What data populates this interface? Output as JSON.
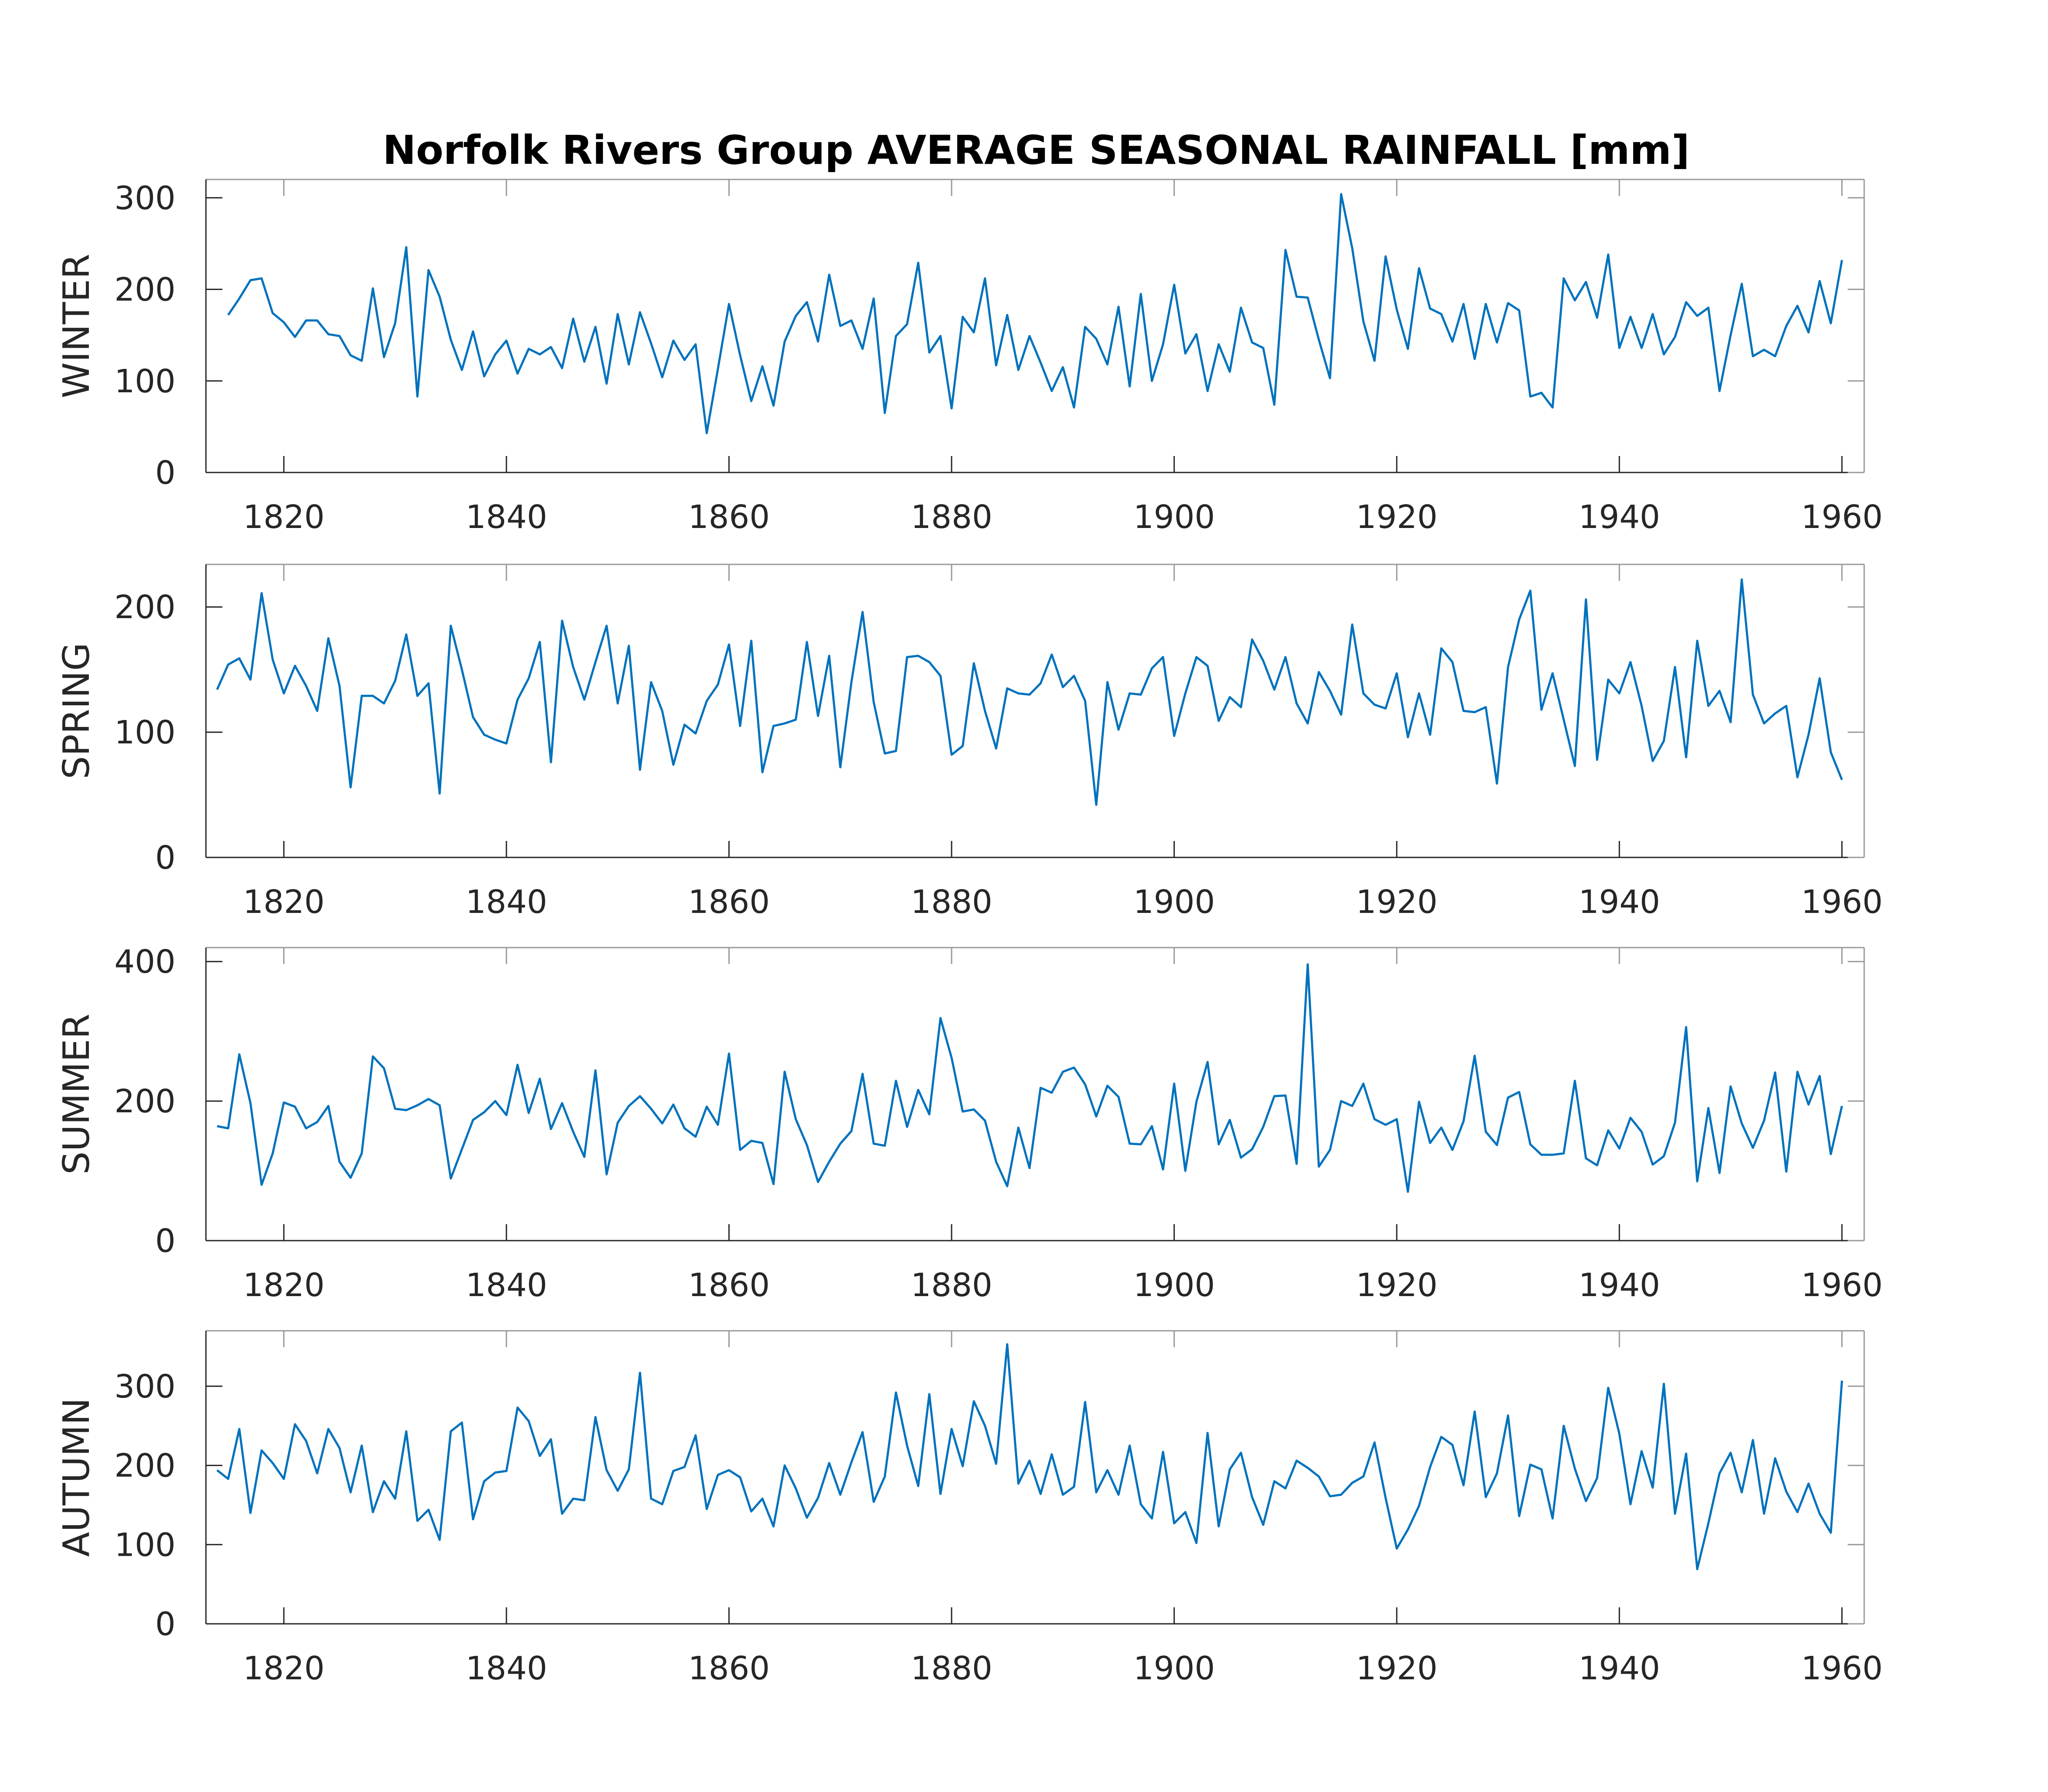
{
  "title": "Norfolk Rivers Group AVERAGE SEASONAL RAINFALL [mm]",
  "line_color": "#0072BD",
  "chart_data": [
    {
      "type": "line",
      "ylabel": "WINTER",
      "xlim": [
        1813,
        1962
      ],
      "ylim": [
        0,
        320
      ],
      "xticks": [
        1820,
        1840,
        1860,
        1880,
        1900,
        1920,
        1940,
        1960
      ],
      "yticks": [
        0,
        100,
        200,
        300
      ],
      "x_start": 1815,
      "values": [
        172,
        190,
        210,
        212,
        174,
        164,
        148,
        166,
        166,
        151,
        149,
        128,
        122,
        201,
        126,
        163,
        246,
        83,
        221,
        192,
        145,
        112,
        154,
        105,
        129,
        144,
        108,
        135,
        129,
        137,
        114,
        168,
        121,
        159,
        97,
        173,
        118,
        175,
        141,
        104,
        144,
        123,
        140,
        43,
        113,
        184,
        128,
        78,
        116,
        73,
        143,
        171,
        186,
        143,
        216,
        160,
        166,
        135,
        190,
        65,
        149,
        162,
        229,
        131,
        149,
        70,
        170,
        153,
        212,
        117,
        172,
        112,
        149,
        120,
        89,
        115,
        71,
        159,
        146,
        118,
        181,
        94,
        195,
        100,
        140,
        205,
        130,
        151,
        89,
        140,
        110,
        180,
        142,
        136,
        74,
        243,
        192,
        191,
        145,
        103,
        304,
        245,
        165,
        122,
        236,
        178,
        135,
        223,
        179,
        173,
        143,
        184,
        124,
        184,
        142,
        185,
        177,
        83,
        87,
        71,
        212,
        188,
        208,
        169,
        238,
        136,
        170,
        136,
        173,
        129,
        148,
        186,
        171,
        180,
        89,
        150,
        206,
        127,
        134,
        127,
        160,
        182,
        153,
        209,
        163,
        232
      ]
    },
    {
      "type": "line",
      "ylabel": "SPRING",
      "xlim": [
        1813,
        1962
      ],
      "ylim": [
        0,
        234
      ],
      "xticks": [
        1820,
        1840,
        1860,
        1880,
        1900,
        1920,
        1940,
        1960
      ],
      "yticks": [
        0,
        100,
        200
      ],
      "x_start": 1814,
      "values": [
        134,
        154,
        159,
        142,
        211,
        158,
        131,
        153,
        137,
        117,
        175,
        137,
        56,
        129,
        129,
        123,
        141,
        178,
        129,
        139,
        51,
        185,
        150,
        112,
        98,
        94,
        91,
        126,
        143,
        172,
        76,
        189,
        152,
        126,
        156,
        185,
        123,
        169,
        70,
        140,
        117,
        74,
        106,
        99,
        125,
        138,
        170,
        105,
        173,
        68,
        105,
        107,
        110,
        172,
        113,
        161,
        72,
        140,
        196,
        124,
        83,
        85,
        160,
        161,
        156,
        145,
        82,
        89,
        155,
        117,
        87,
        135,
        131,
        130,
        139,
        162,
        136,
        145,
        125,
        42,
        140,
        102,
        131,
        130,
        151,
        160,
        97,
        131,
        160,
        153,
        109,
        128,
        120,
        174,
        157,
        134,
        160,
        123,
        107,
        148,
        133,
        114,
        186,
        131,
        122,
        119,
        147,
        96,
        131,
        98,
        167,
        156,
        117,
        116,
        120,
        59,
        152,
        190,
        213,
        118,
        147,
        110,
        73,
        206,
        78,
        142,
        131,
        156,
        121,
        77,
        93,
        152,
        80,
        173,
        121,
        133,
        108,
        222,
        130,
        107,
        115,
        121,
        64,
        98,
        143,
        84,
        62
      ]
    },
    {
      "type": "line",
      "ylabel": "SUMMER",
      "xlim": [
        1813,
        1962
      ],
      "ylim": [
        0,
        420
      ],
      "xticks": [
        1820,
        1840,
        1860,
        1880,
        1900,
        1920,
        1940,
        1960
      ],
      "yticks": [
        0,
        200,
        400
      ],
      "x_start": 1814,
      "values": [
        164,
        161,
        267,
        197,
        80,
        125,
        198,
        192,
        161,
        170,
        193,
        113,
        90,
        125,
        264,
        247,
        189,
        187,
        194,
        203,
        194,
        89,
        131,
        173,
        184,
        200,
        180,
        252,
        183,
        232,
        160,
        197,
        156,
        120,
        244,
        95,
        169,
        193,
        207,
        189,
        168,
        195,
        161,
        149,
        192,
        166,
        268,
        130,
        143,
        140,
        81,
        242,
        174,
        137,
        84,
        113,
        139,
        157,
        239,
        139,
        136,
        229,
        163,
        216,
        181,
        319,
        262,
        185,
        188,
        172,
        113,
        78,
        162,
        104,
        219,
        212,
        242,
        248,
        224,
        178,
        222,
        206,
        139,
        138,
        164,
        102,
        225,
        100,
        199,
        256,
        138,
        173,
        119,
        131,
        163,
        207,
        208,
        110,
        396,
        106,
        130,
        200,
        193,
        225,
        174,
        166,
        174,
        70,
        199,
        140,
        162,
        130,
        171,
        265,
        156,
        137,
        205,
        213,
        138,
        123,
        123,
        125,
        229,
        118,
        108,
        158,
        132,
        176,
        156,
        109,
        121,
        169,
        306,
        85,
        190,
        97,
        221,
        168,
        133,
        172,
        241,
        99,
        242,
        195,
        236,
        124,
        193
      ]
    },
    {
      "type": "line",
      "ylabel": "AUTUMN",
      "xlim": [
        1813,
        1962
      ],
      "ylim": [
        0,
        370
      ],
      "xticks": [
        1820,
        1840,
        1860,
        1880,
        1900,
        1920,
        1940,
        1960
      ],
      "yticks": [
        0,
        100,
        200,
        300
      ],
      "x_start": 1814,
      "values": [
        194,
        183,
        246,
        140,
        219,
        203,
        183,
        252,
        231,
        190,
        246,
        222,
        166,
        225,
        141,
        180,
        158,
        243,
        130,
        144,
        106,
        243,
        254,
        132,
        180,
        191,
        193,
        273,
        256,
        212,
        233,
        139,
        158,
        156,
        261,
        194,
        168,
        195,
        317,
        158,
        151,
        193,
        198,
        238,
        145,
        188,
        194,
        185,
        142,
        158,
        123,
        200,
        171,
        134,
        159,
        203,
        163,
        204,
        242,
        154,
        186,
        292,
        225,
        174,
        290,
        164,
        246,
        199,
        281,
        250,
        202,
        353,
        177,
        206,
        164,
        214,
        163,
        173,
        280,
        166,
        194,
        163,
        225,
        151,
        133,
        217,
        127,
        141,
        102,
        241,
        123,
        195,
        216,
        160,
        125,
        180,
        171,
        206,
        197,
        186,
        161,
        163,
        178,
        186,
        229,
        159,
        95,
        119,
        149,
        198,
        236,
        226,
        175,
        268,
        160,
        190,
        263,
        136,
        201,
        195,
        133,
        250,
        196,
        155,
        184,
        298,
        240,
        151,
        218,
        172,
        303,
        139,
        215,
        69,
        127,
        190,
        216,
        166,
        232,
        139,
        209,
        167,
        141,
        177,
        139,
        115,
        307
      ]
    }
  ]
}
